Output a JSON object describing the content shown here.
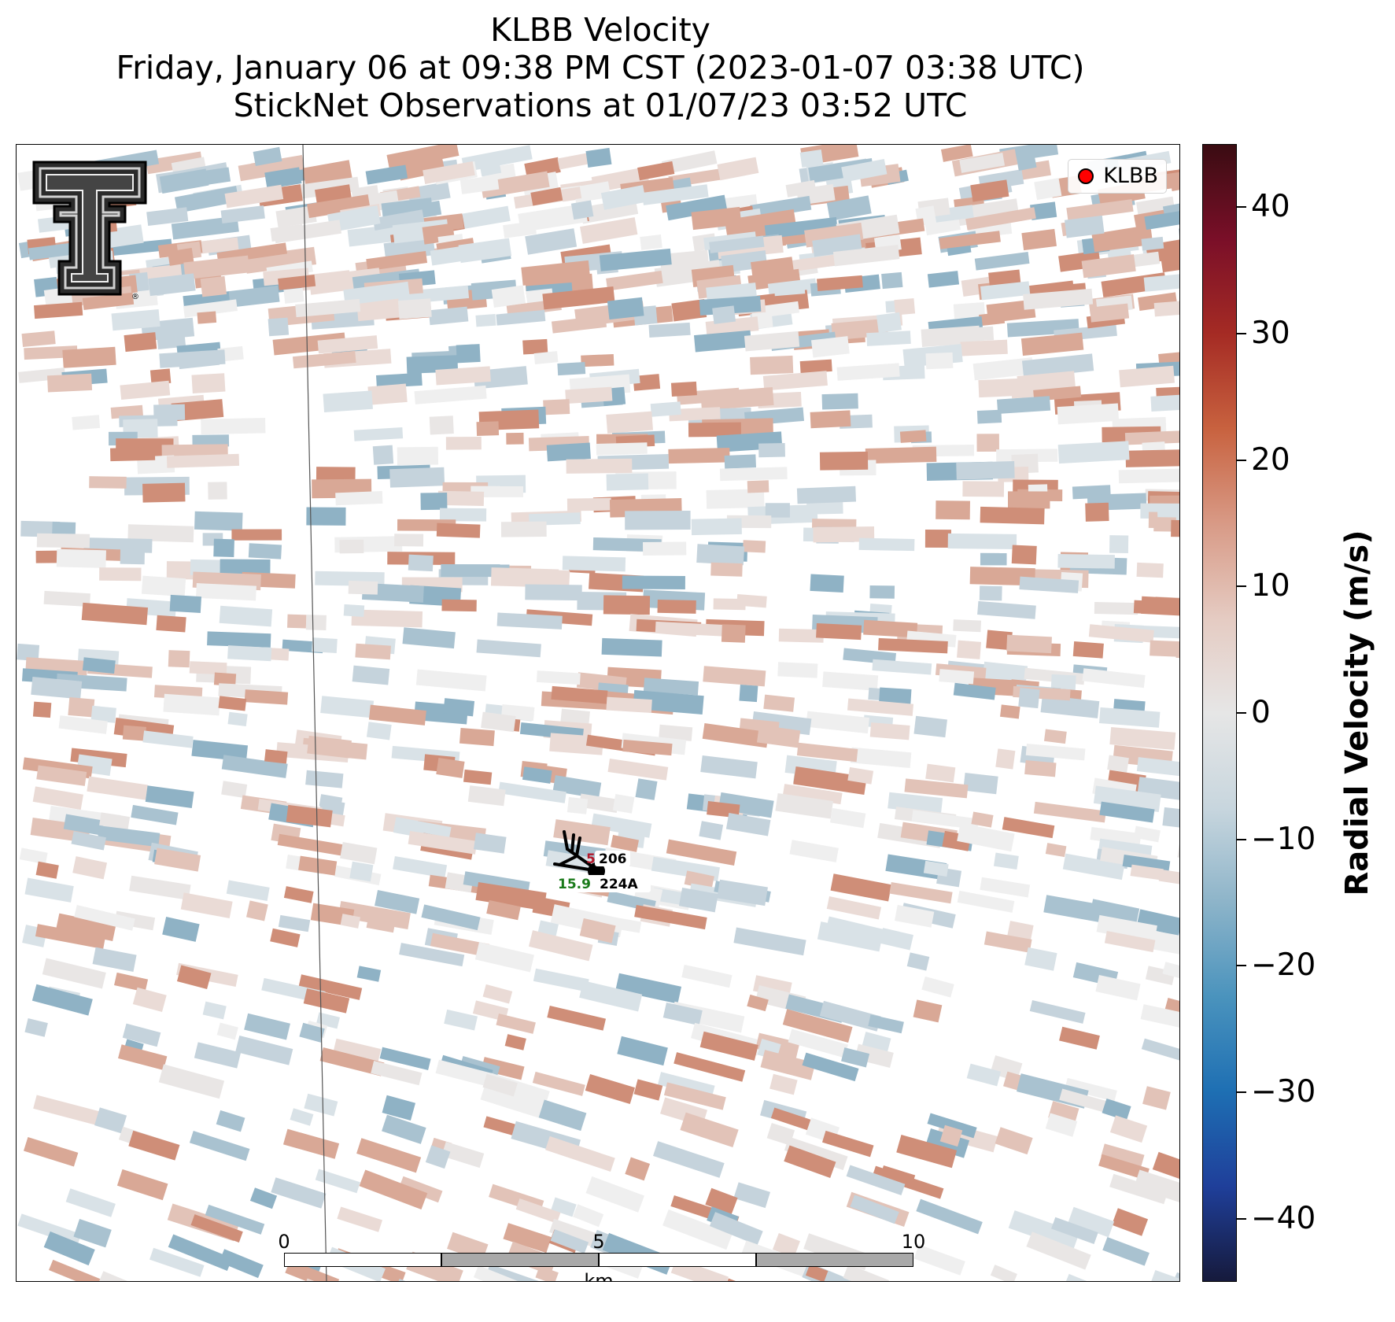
{
  "title": {
    "line1": "KLBB Velocity",
    "line2": "Friday, January 06 at 09:38 PM CST (2023-01-07 03:38 UTC)",
    "line3": "StickNet Observations at 01/07/23 03:52 UTC"
  },
  "legend": {
    "label": "KLBB",
    "marker_color": "#ff0000"
  },
  "logo": {
    "icon": "texas-tech-double-t-logo"
  },
  "stations": [
    {
      "id": "206",
      "value_top": "5",
      "value_top_color": "#b2182b"
    },
    {
      "id": "224A",
      "value_bottom": "15.9",
      "value_bottom_color": "#1a7a1a"
    }
  ],
  "scale_bar": {
    "ticks": [
      "0",
      "5",
      "10"
    ],
    "unit": "km"
  },
  "colorbar": {
    "label": "Radial Velocity (m/s)",
    "ticks": [
      "40",
      "30",
      "20",
      "10",
      "0",
      "−10",
      "−20",
      "−30",
      "−40"
    ],
    "range": [
      -45,
      45
    ],
    "colors": [
      "#161a3c",
      "#1f3f9a",
      "#1e6fb3",
      "#4a93bd",
      "#8db4c9",
      "#c8d6de",
      "#e6e6e6",
      "#e5cbc2",
      "#d89a86",
      "#c8623f",
      "#a52b24",
      "#7a0f28",
      "#3a0c12"
    ]
  }
}
